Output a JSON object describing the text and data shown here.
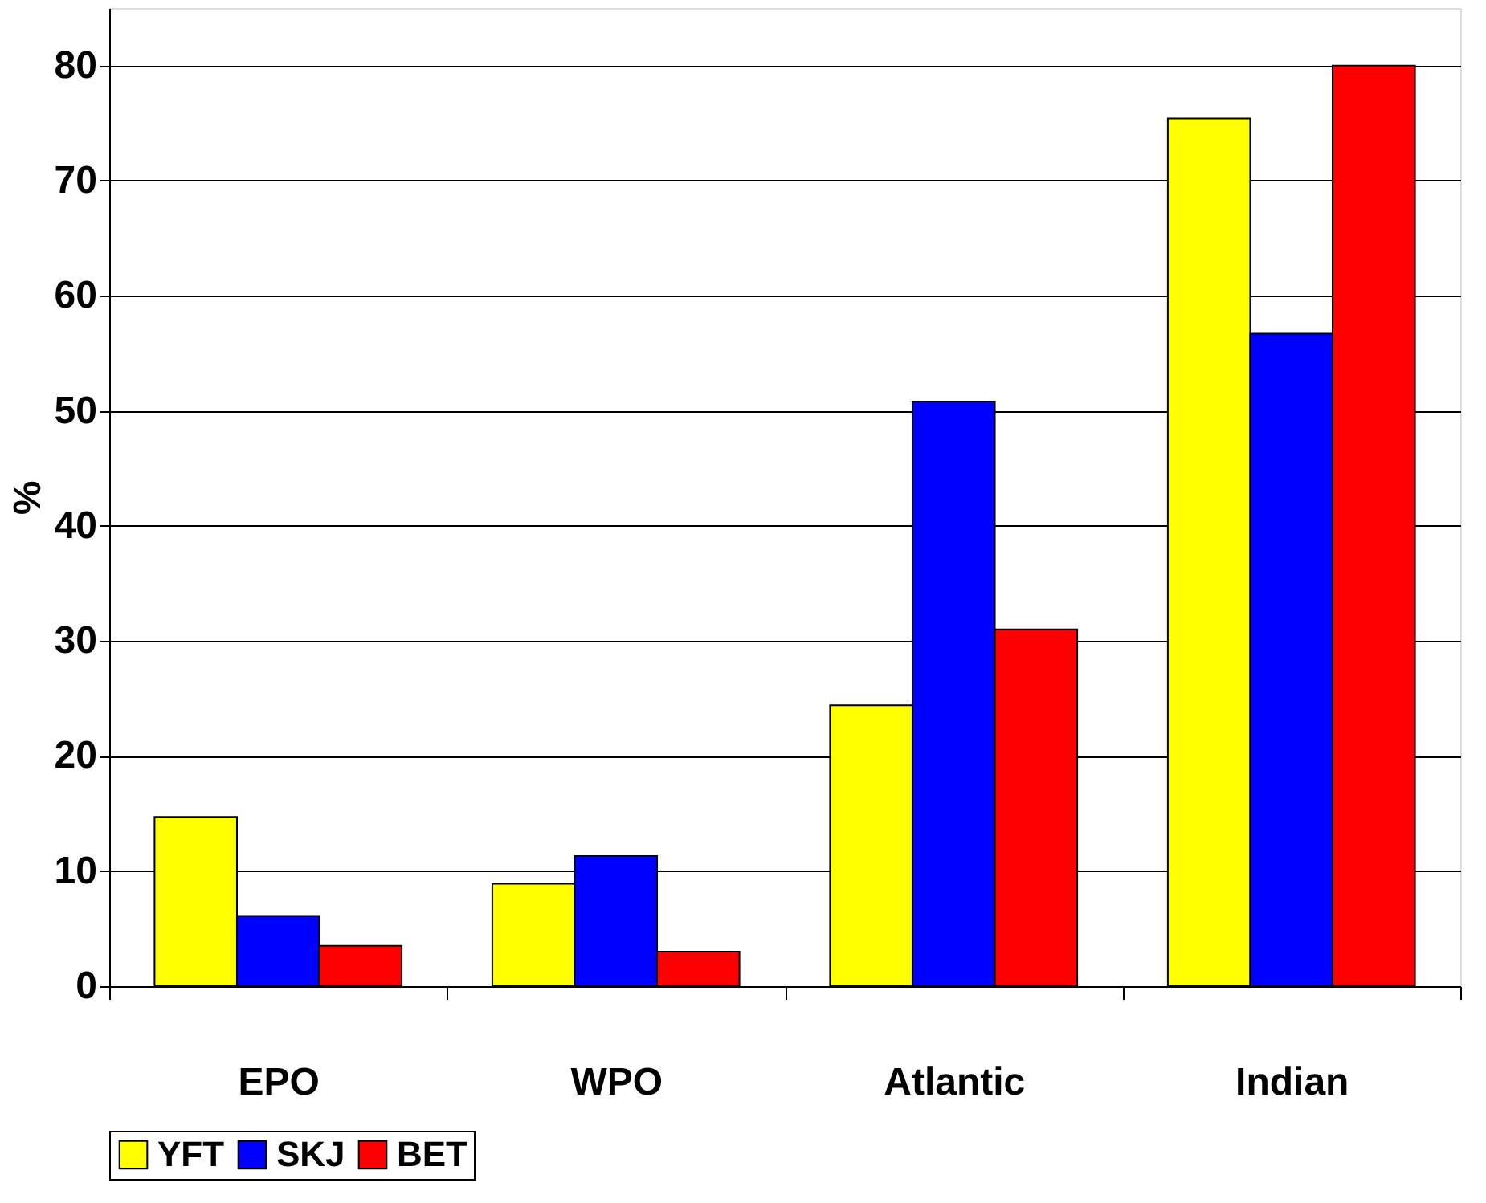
{
  "chart_data": {
    "type": "bar",
    "ylabel": "%",
    "categories": [
      "EPO",
      "WPO",
      "Atlantic",
      "Indian"
    ],
    "series": [
      {
        "name": "YFT",
        "color": "#ffff00",
        "values": [
          14.7,
          8.9,
          24.4,
          75.4
        ]
      },
      {
        "name": "SKJ",
        "color": "#0000ff",
        "values": [
          6.1,
          11.3,
          50.8,
          56.7
        ]
      },
      {
        "name": "BET",
        "color": "#ff0000",
        "values": [
          3.5,
          3.0,
          31.0,
          80.0
        ]
      }
    ],
    "ylim": [
      0,
      85
    ],
    "yticks": [
      0,
      10,
      20,
      30,
      40,
      50,
      60,
      70,
      80
    ],
    "grid": "y",
    "legend": "bottom"
  }
}
